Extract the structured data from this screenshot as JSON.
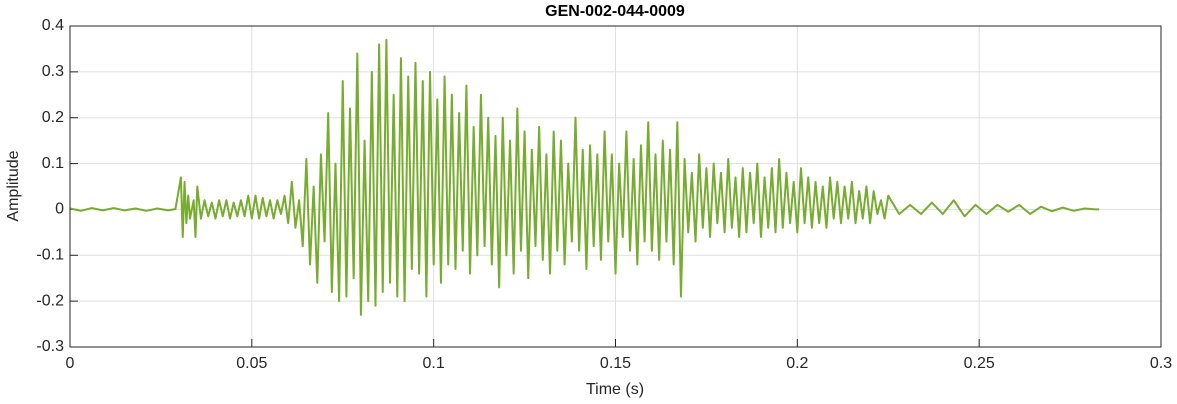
{
  "chart_data": {
    "type": "line",
    "title": "GEN-002-044-0009",
    "x_label": "Time (s)",
    "y_label": "Amplitude",
    "xlim": [
      0,
      0.3
    ],
    "xticks": [
      0,
      0.05,
      0.1,
      0.15,
      0.2,
      0.25,
      0.3
    ],
    "ylim": [
      -0.3,
      0.4
    ],
    "yticks": [
      -0.3,
      -0.2,
      -0.1,
      0,
      0.1,
      0.2,
      0.3,
      0.4
    ],
    "grid": true,
    "series": [
      {
        "color": "#77ac30",
        "x": [
          0,
          0.003,
          0.006,
          0.009,
          0.012,
          0.015,
          0.018,
          0.021,
          0.024,
          0.027,
          0.029,
          0.0305,
          0.031,
          0.0315,
          0.032,
          0.0325,
          0.033,
          0.034,
          0.0345,
          0.035,
          0.036,
          0.037,
          0.038,
          0.039,
          0.04,
          0.041,
          0.042,
          0.043,
          0.044,
          0.045,
          0.046,
          0.047,
          0.048,
          0.049,
          0.05,
          0.051,
          0.052,
          0.053,
          0.054,
          0.055,
          0.056,
          0.057,
          0.058,
          0.059,
          0.06,
          0.061,
          0.062,
          0.063,
          0.064,
          0.065,
          0.066,
          0.067,
          0.068,
          0.069,
          0.07,
          0.071,
          0.072,
          0.073,
          0.074,
          0.075,
          0.076,
          0.077,
          0.078,
          0.079,
          0.08,
          0.081,
          0.082,
          0.083,
          0.084,
          0.085,
          0.086,
          0.087,
          0.088,
          0.089,
          0.09,
          0.091,
          0.092,
          0.093,
          0.094,
          0.095,
          0.096,
          0.097,
          0.098,
          0.099,
          0.1,
          0.101,
          0.102,
          0.103,
          0.104,
          0.105,
          0.106,
          0.107,
          0.108,
          0.109,
          0.11,
          0.111,
          0.112,
          0.113,
          0.114,
          0.115,
          0.116,
          0.117,
          0.118,
          0.119,
          0.12,
          0.121,
          0.122,
          0.123,
          0.124,
          0.125,
          0.126,
          0.127,
          0.128,
          0.129,
          0.13,
          0.131,
          0.132,
          0.133,
          0.134,
          0.135,
          0.136,
          0.137,
          0.138,
          0.139,
          0.14,
          0.141,
          0.142,
          0.143,
          0.144,
          0.145,
          0.146,
          0.147,
          0.148,
          0.149,
          0.15,
          0.151,
          0.152,
          0.153,
          0.154,
          0.155,
          0.156,
          0.157,
          0.158,
          0.159,
          0.16,
          0.161,
          0.162,
          0.163,
          0.164,
          0.165,
          0.166,
          0.167,
          0.168,
          0.169,
          0.17,
          0.171,
          0.172,
          0.173,
          0.174,
          0.175,
          0.176,
          0.177,
          0.178,
          0.179,
          0.18,
          0.181,
          0.182,
          0.183,
          0.184,
          0.185,
          0.186,
          0.187,
          0.188,
          0.189,
          0.19,
          0.191,
          0.192,
          0.193,
          0.194,
          0.195,
          0.196,
          0.197,
          0.198,
          0.199,
          0.2,
          0.201,
          0.202,
          0.203,
          0.204,
          0.205,
          0.206,
          0.207,
          0.208,
          0.209,
          0.21,
          0.211,
          0.212,
          0.213,
          0.214,
          0.215,
          0.216,
          0.217,
          0.218,
          0.219,
          0.22,
          0.221,
          0.222,
          0.223,
          0.224,
          0.225,
          0.228,
          0.231,
          0.234,
          0.237,
          0.24,
          0.243,
          0.246,
          0.249,
          0.252,
          0.255,
          0.258,
          0.261,
          0.264,
          0.267,
          0.27,
          0.273,
          0.276,
          0.279,
          0.282,
          0.283
        ],
        "values": [
          0.002,
          -0.003,
          0.003,
          -0.002,
          0.003,
          -0.002,
          0.002,
          -0.003,
          0.002,
          -0.002,
          0.001,
          0.07,
          -0.06,
          0.06,
          -0.03,
          0.03,
          -0.02,
          0.02,
          -0.06,
          0.05,
          -0.02,
          0.02,
          -0.015,
          0.015,
          -0.02,
          0.02,
          -0.015,
          0.02,
          -0.02,
          0.015,
          -0.015,
          0.02,
          -0.015,
          0.03,
          -0.02,
          0.03,
          -0.02,
          0.025,
          -0.015,
          0.02,
          -0.02,
          0.02,
          -0.01,
          0.03,
          -0.03,
          0.06,
          -0.04,
          0.02,
          -0.08,
          0.11,
          -0.12,
          0.05,
          -0.16,
          0.12,
          -0.07,
          0.21,
          -0.18,
          0.1,
          -0.2,
          0.28,
          -0.19,
          0.22,
          -0.15,
          0.34,
          -0.23,
          0.15,
          -0.2,
          0.3,
          -0.21,
          0.36,
          -0.18,
          0.37,
          -0.16,
          0.25,
          -0.19,
          0.33,
          -0.2,
          0.29,
          -0.13,
          0.32,
          -0.14,
          0.28,
          -0.19,
          0.3,
          -0.12,
          0.24,
          -0.16,
          0.29,
          -0.12,
          0.25,
          -0.13,
          0.21,
          -0.09,
          0.27,
          -0.14,
          0.18,
          -0.1,
          0.25,
          -0.08,
          0.2,
          -0.12,
          0.16,
          -0.17,
          0.2,
          -0.1,
          0.15,
          -0.14,
          0.22,
          -0.09,
          0.17,
          -0.15,
          0.13,
          -0.08,
          0.18,
          -0.11,
          0.12,
          -0.14,
          0.17,
          -0.09,
          0.15,
          -0.12,
          0.1,
          -0.07,
          0.2,
          -0.09,
          0.13,
          -0.13,
          0.14,
          -0.08,
          0.12,
          -0.11,
          0.17,
          -0.07,
          0.12,
          -0.14,
          0.1,
          -0.06,
          0.17,
          -0.09,
          0.11,
          -0.12,
          0.14,
          -0.07,
          0.19,
          -0.09,
          0.12,
          -0.11,
          0.15,
          -0.07,
          0.13,
          -0.12,
          0.19,
          -0.19,
          0.11,
          -0.05,
          0.08,
          -0.07,
          0.12,
          -0.04,
          0.09,
          -0.06,
          0.1,
          -0.03,
          0.08,
          -0.05,
          0.11,
          -0.04,
          0.07,
          -0.06,
          0.09,
          -0.05,
          0.08,
          -0.03,
          0.1,
          -0.06,
          0.07,
          -0.04,
          0.09,
          -0.05,
          0.11,
          -0.04,
          0.08,
          -0.03,
          0.06,
          -0.05,
          0.09,
          -0.03,
          0.07,
          -0.04,
          0.06,
          -0.03,
          0.05,
          -0.04,
          0.07,
          -0.02,
          0.06,
          -0.03,
          0.05,
          -0.02,
          0.06,
          -0.03,
          0.04,
          -0.02,
          0.05,
          -0.03,
          0.04,
          -0.01,
          0.02,
          -0.02,
          0.03,
          -0.01,
          0.01,
          -0.01,
          0.015,
          -0.01,
          0.02,
          -0.015,
          0.01,
          -0.01,
          0.01,
          -0.005,
          0.01,
          -0.01,
          0.006,
          -0.004,
          0.004,
          -0.003,
          0.002,
          0,
          0
        ]
      }
    ]
  }
}
